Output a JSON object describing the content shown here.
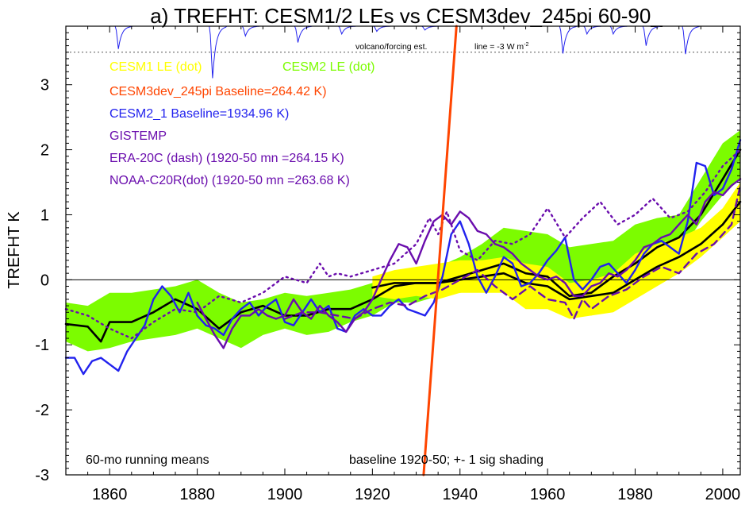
{
  "chart_data": {
    "type": "line",
    "title": "a) TREFHT: CESM1/2 LEs vs CESM3dev_245pi 60-90_",
    "xlabel": "",
    "ylabel": "TREFHT K",
    "xlim": [
      1850,
      2004
    ],
    "ylim": [
      -3,
      3.9
    ],
    "xticks": [
      1860,
      1880,
      1900,
      1920,
      1940,
      1960,
      1980,
      2000
    ],
    "yticks": [
      -3,
      -2,
      -1,
      0,
      1,
      2,
      3
    ],
    "grid": false,
    "legend": [
      {
        "text": "CESM1 LE (dot)",
        "color": "#ffff00"
      },
      {
        "text": "CESM2 LE (dot)",
        "color": "#7cfc00"
      },
      {
        "text": "CESM3dev_245pi Baseline=264.42 K)",
        "color": "#ff4500"
      },
      {
        "text": "CESM2_1 Baseline=1934.96 K)",
        "color": "#2222ee"
      },
      {
        "text": "GISTEMP",
        "color": "#6a0dad"
      },
      {
        "text": "ERA-20C (dash) (1920-50 mn =264.15 K)",
        "color": "#6a0dad"
      },
      {
        "text": "NOAA-C20R(dot) (1920-50 mn =263.68 K)",
        "color": "#6a0dad"
      }
    ],
    "annotations": {
      "volcano_label": "volcano/forcing est.",
      "line_label": "line = -3 W m",
      "line_label_sup": "-2",
      "running_means": "60-mo running means",
      "baseline": "baseline 1920-50; +- 1 sig shading"
    },
    "volcano_ref_y": 3.5,
    "series": [
      {
        "name": "CESM2 LE (dot)",
        "kind": "band",
        "color": "#7cfc00",
        "x": [
          1850,
          1855,
          1860,
          1865,
          1870,
          1875,
          1880,
          1885,
          1890,
          1895,
          1900,
          1905,
          1910,
          1915,
          1920,
          1925,
          1930,
          1935,
          1940,
          1945,
          1950,
          1955,
          1960,
          1965,
          1970,
          1975,
          1980,
          1985,
          1990,
          1995,
          2000,
          2004
        ],
        "upper": [
          -0.35,
          -0.4,
          -0.2,
          -0.2,
          -0.15,
          -0.1,
          0.0,
          -0.2,
          -0.35,
          -0.3,
          -0.2,
          -0.25,
          -0.2,
          -0.15,
          -0.05,
          0.05,
          0.1,
          0.2,
          0.35,
          0.55,
          0.8,
          0.75,
          0.7,
          0.5,
          0.55,
          0.6,
          0.85,
          0.95,
          1.0,
          1.55,
          2.1,
          2.3
        ],
        "lower": [
          -0.95,
          -1.1,
          -1.05,
          -0.95,
          -0.9,
          -0.85,
          -0.75,
          -0.9,
          -1.05,
          -0.85,
          -0.75,
          -0.85,
          -0.8,
          -0.65,
          -0.55,
          -0.35,
          -0.35,
          -0.25,
          -0.2,
          -0.15,
          -0.05,
          -0.2,
          -0.3,
          -0.55,
          -0.55,
          -0.35,
          -0.05,
          0.15,
          0.4,
          0.9,
          1.3,
          1.55
        ]
      },
      {
        "name": "CESM1 LE (dot)",
        "kind": "band",
        "color": "#ffff00",
        "x": [
          1920,
          1925,
          1930,
          1935,
          1940,
          1945,
          1950,
          1955,
          1960,
          1965,
          1970,
          1975,
          1980,
          1985,
          1990,
          1995,
          2000,
          2004
        ],
        "upper": [
          0.05,
          0.15,
          0.2,
          0.25,
          0.3,
          0.3,
          0.35,
          0.25,
          0.2,
          -0.05,
          0.0,
          0.1,
          0.4,
          0.55,
          0.65,
          0.8,
          1.1,
          1.5
        ],
        "lower": [
          -0.25,
          -0.3,
          -0.25,
          -0.3,
          -0.2,
          -0.2,
          -0.2,
          -0.45,
          -0.45,
          -0.6,
          -0.55,
          -0.5,
          -0.3,
          -0.1,
          0.1,
          0.35,
          0.65,
          0.9
        ]
      },
      {
        "name": "CESM2 LE mean",
        "kind": "line",
        "color": "#000000",
        "width": 2.6,
        "x": [
          1850,
          1855,
          1858,
          1860,
          1865,
          1870,
          1875,
          1880,
          1885,
          1890,
          1895,
          1900,
          1905,
          1910,
          1915,
          1920,
          1925,
          1930,
          1935,
          1940,
          1945,
          1950,
          1955,
          1960,
          1965,
          1970,
          1975,
          1980,
          1985,
          1990,
          1995,
          2000,
          2004
        ],
        "y": [
          -0.68,
          -0.72,
          -0.95,
          -0.65,
          -0.65,
          -0.5,
          -0.3,
          -0.45,
          -0.75,
          -0.5,
          -0.4,
          -0.55,
          -0.55,
          -0.45,
          -0.45,
          -0.3,
          -0.1,
          -0.05,
          -0.05,
          0.05,
          0.15,
          0.25,
          0.1,
          0.05,
          -0.25,
          -0.2,
          0.05,
          0.25,
          0.5,
          0.65,
          1.0,
          1.55,
          2.0
        ]
      },
      {
        "name": "CESM1 LE mean",
        "kind": "line",
        "color": "#000000",
        "width": 2.6,
        "x": [
          1920,
          1925,
          1930,
          1935,
          1940,
          1945,
          1950,
          1955,
          1960,
          1965,
          1970,
          1975,
          1980,
          1985,
          1990,
          1995,
          2000,
          2004
        ],
        "y": [
          -0.12,
          -0.05,
          -0.05,
          -0.05,
          0.0,
          0.05,
          0.1,
          -0.05,
          -0.1,
          -0.3,
          -0.25,
          -0.2,
          0.0,
          0.2,
          0.35,
          0.55,
          0.85,
          1.2
        ]
      },
      {
        "name": "CESM2_1 Baseline=1934.96 K)",
        "kind": "line",
        "color": "#2222ee",
        "width": 2.4,
        "x": [
          1850,
          1852,
          1854,
          1856,
          1858,
          1860,
          1862,
          1864,
          1866,
          1868,
          1870,
          1872,
          1874,
          1876,
          1878,
          1880,
          1882,
          1884,
          1886,
          1888,
          1890,
          1892,
          1894,
          1896,
          1898,
          1900,
          1902,
          1904,
          1906,
          1908,
          1910,
          1912,
          1914,
          1916,
          1918,
          1920,
          1922,
          1924,
          1926,
          1928,
          1930,
          1932,
          1934,
          1936,
          1938,
          1940,
          1942,
          1944,
          1946,
          1948,
          1950,
          1952,
          1954,
          1956,
          1958,
          1960,
          1962,
          1964,
          1966,
          1968,
          1970,
          1972,
          1974,
          1976,
          1978,
          1980,
          1982,
          1984,
          1986,
          1988,
          1990,
          1992,
          1994,
          1996,
          1998,
          2000,
          2002,
          2004
        ],
        "y": [
          -1.2,
          -1.2,
          -1.45,
          -1.25,
          -1.2,
          -1.3,
          -1.4,
          -1.1,
          -0.9,
          -0.7,
          -0.3,
          -0.1,
          -0.25,
          -0.5,
          -0.2,
          -0.55,
          -0.7,
          -0.75,
          -0.85,
          -0.6,
          -0.45,
          -0.35,
          -0.55,
          -0.4,
          -0.3,
          -0.65,
          -0.7,
          -0.5,
          -0.3,
          -0.5,
          -0.4,
          -0.75,
          -0.8,
          -0.55,
          -0.45,
          -0.55,
          -0.55,
          -0.4,
          -0.3,
          -0.45,
          -0.5,
          -0.55,
          -0.35,
          0.05,
          0.7,
          0.9,
          0.55,
          0.05,
          -0.2,
          0.05,
          0.35,
          0.25,
          -0.1,
          -0.05,
          0.1,
          0.3,
          0.45,
          0.65,
          0.0,
          -0.15,
          0.0,
          0.2,
          0.25,
          0.1,
          -0.05,
          0.15,
          0.4,
          0.55,
          0.6,
          0.5,
          0.4,
          0.9,
          1.8,
          1.75,
          1.3,
          1.4,
          1.7,
          2.15
        ]
      },
      {
        "name": "GISTEMP",
        "kind": "line",
        "color": "#6a0dad",
        "width": 2.4,
        "x": [
          1880,
          1882,
          1884,
          1886,
          1888,
          1890,
          1892,
          1894,
          1896,
          1898,
          1900,
          1902,
          1904,
          1906,
          1908,
          1910,
          1912,
          1914,
          1916,
          1918,
          1920,
          1922,
          1924,
          1926,
          1928,
          1930,
          1932,
          1934,
          1936,
          1938,
          1940,
          1942,
          1944,
          1946,
          1948,
          1950,
          1952,
          1954,
          1956,
          1958,
          1960,
          1962,
          1964,
          1966,
          1968,
          1970,
          1972,
          1974,
          1976,
          1978,
          1980,
          1982,
          1984,
          1986,
          1988,
          1990,
          1992,
          1994,
          1996,
          1998,
          2000,
          2002,
          2004
        ],
        "y": [
          -0.35,
          -0.6,
          -0.85,
          -1.05,
          -0.75,
          -0.55,
          -0.55,
          -0.45,
          -0.55,
          -0.6,
          -0.55,
          -0.3,
          -0.5,
          -0.6,
          -0.4,
          -0.55,
          -0.65,
          -0.8,
          -0.6,
          -0.5,
          -0.3,
          0.0,
          0.3,
          0.55,
          0.5,
          0.25,
          0.6,
          0.9,
          1.0,
          0.85,
          1.05,
          0.95,
          0.75,
          0.7,
          0.55,
          0.5,
          0.4,
          0.25,
          0.15,
          0.05,
          0.0,
          0.05,
          -0.05,
          -0.25,
          -0.25,
          -0.1,
          -0.05,
          0.1,
          0.05,
          0.15,
          0.3,
          0.5,
          0.55,
          0.65,
          0.7,
          0.85,
          1.0,
          0.85,
          1.2,
          1.35,
          1.3,
          1.45,
          1.55
        ]
      },
      {
        "name": "ERA-20C (dash) (1920-50 mn =264.15 K)",
        "kind": "line",
        "color": "#6a0dad",
        "width": 2.4,
        "dash": "9,6",
        "x": [
          1900,
          1904,
          1908,
          1912,
          1916,
          1920,
          1924,
          1928,
          1932,
          1936,
          1940,
          1944,
          1948,
          1952,
          1956,
          1960,
          1964,
          1966,
          1968,
          1970,
          1974,
          1978,
          1982,
          1986,
          1990,
          1994,
          1998,
          2002,
          2004
        ],
        "y": [
          -0.6,
          -0.5,
          -0.5,
          -0.55,
          -0.6,
          -0.45,
          -0.35,
          -0.4,
          -0.25,
          -0.15,
          0.0,
          0.15,
          -0.1,
          -0.3,
          -0.1,
          -0.3,
          -0.35,
          -0.6,
          -0.3,
          -0.45,
          -0.25,
          -0.15,
          0.05,
          0.2,
          0.1,
          0.4,
          0.55,
          0.85,
          1.45
        ]
      },
      {
        "name": "NOAA-C20R(dot) (1920-50 mn =263.68 K)",
        "kind": "line",
        "color": "#6a0dad",
        "width": 2.4,
        "dash": "2,5",
        "x": [
          1850,
          1855,
          1860,
          1865,
          1870,
          1875,
          1880,
          1885,
          1890,
          1895,
          1900,
          1905,
          1908,
          1910,
          1912,
          1915,
          1920,
          1925,
          1930,
          1933,
          1935,
          1937,
          1940,
          1944,
          1948,
          1952,
          1956,
          1960,
          1964,
          1968,
          1972,
          1976,
          1980,
          1984,
          1988,
          1992,
          1996,
          2000,
          2004
        ],
        "y": [
          -0.45,
          -0.55,
          -0.75,
          -0.9,
          -0.65,
          -0.45,
          -0.5,
          -0.25,
          -0.35,
          -0.2,
          0.05,
          -0.05,
          0.25,
          0.05,
          0.1,
          0.05,
          0.15,
          0.25,
          0.55,
          0.95,
          0.7,
          1.05,
          0.45,
          0.3,
          0.6,
          0.55,
          0.7,
          1.1,
          0.65,
          0.95,
          1.2,
          0.85,
          1.0,
          1.25,
          0.95,
          1.05,
          1.35,
          1.75,
          2.0
        ]
      },
      {
        "name": "CESM3dev_245pi Baseline=264.42 K)",
        "kind": "line",
        "color": "#ff4500",
        "width": 3,
        "x": [
          1931.7,
          1939.2
        ],
        "y": [
          -3,
          3.9
        ]
      }
    ],
    "forcing_trace": {
      "name": "volcano/forcing est.",
      "color": "#2222ee",
      "baseline": 3.9,
      "dips": [
        {
          "x": 1862,
          "depth": 0.35
        },
        {
          "x": 1883.5,
          "depth": 0.8
        },
        {
          "x": 1891,
          "depth": 0.15
        },
        {
          "x": 1903,
          "depth": 0.25
        },
        {
          "x": 1913,
          "depth": 0.12
        },
        {
          "x": 1921,
          "depth": 0.08
        },
        {
          "x": 1932,
          "depth": 0.06
        },
        {
          "x": 1963.5,
          "depth": 0.42
        },
        {
          "x": 1969,
          "depth": 0.12
        },
        {
          "x": 1975,
          "depth": 0.12
        },
        {
          "x": 1982.5,
          "depth": 0.3
        },
        {
          "x": 1991.5,
          "depth": 0.43
        }
      ]
    }
  }
}
